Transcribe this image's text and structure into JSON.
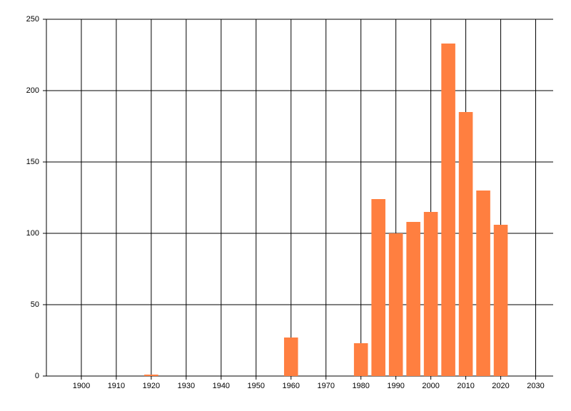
{
  "chart_data": {
    "type": "bar",
    "x": [
      1920,
      1960,
      1980,
      1985,
      1990,
      1995,
      2000,
      2005,
      2010,
      2015,
      2020
    ],
    "values": [
      1,
      27,
      23,
      124,
      100,
      108,
      115,
      233,
      185,
      130,
      106
    ],
    "color": "#ff7f40",
    "xlim": [
      1890,
      2035
    ],
    "xticks": [
      1900,
      1910,
      1920,
      1930,
      1940,
      1950,
      1960,
      1970,
      1980,
      1990,
      2000,
      2010,
      2020,
      2030
    ],
    "ylim": [
      0,
      250
    ],
    "yticks": [
      0,
      50,
      100,
      150,
      200,
      250
    ],
    "grid": true
  }
}
